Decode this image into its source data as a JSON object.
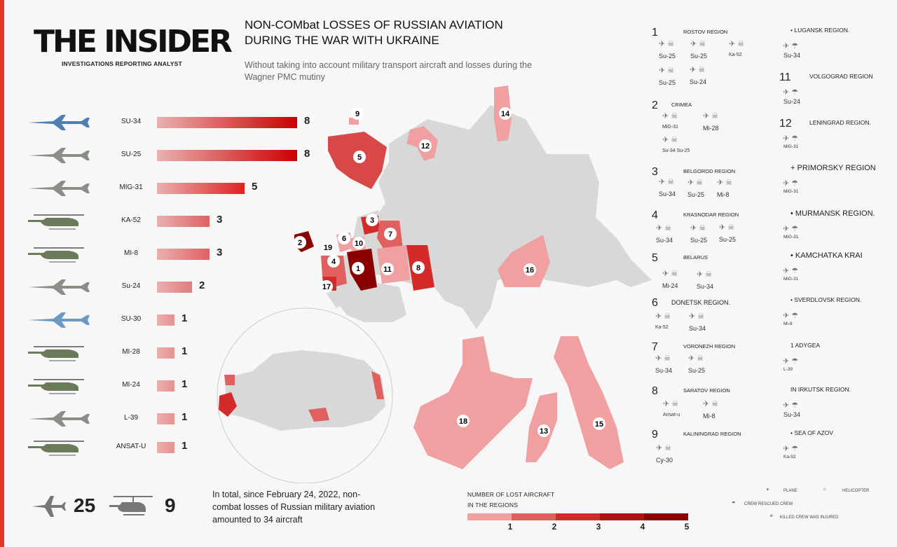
{
  "header": {
    "logo": "THE INSIDER",
    "tagline": "INVESTIGATIONS REPORTING ANALYST",
    "title": "NON-COMbat LOSSES OF RUSSIAN AVIATION DURING THE WAR WITH UKRAINE",
    "subtitle": "Without taking into account military transport aircraft and losses during the Wagner PMC mutiny"
  },
  "chart_data": {
    "type": "bar",
    "orientation": "horizontal",
    "categories": [
      "SU-34",
      "SU-25",
      "MIG-31",
      "KA-52",
      "MI-8",
      "Su-24",
      "SU-30",
      "MI-28",
      "MI-24",
      "L-39",
      "ANSAT-U"
    ],
    "values": [
      8,
      8,
      5,
      3,
      3,
      2,
      1,
      1,
      1,
      1,
      1
    ],
    "colors": [
      "#cc0000",
      "#cc0000",
      "#dd2222",
      "#e06060",
      "#e06060",
      "#e07b7b",
      "#e88f8f",
      "#e88f8f",
      "#e88f8f",
      "#e88f8f",
      "#e88f8f"
    ],
    "legend": {
      "title_line1": "NUMBER OF LOST AIRCRAFT",
      "title_line2": "IN THE REGIONS",
      "levels": [
        "1",
        "2",
        "3",
        "4",
        "5"
      ],
      "colors": [
        "#f0a0a0",
        "#e06060",
        "#d42a2a",
        "#b01010",
        "#8a0000"
      ]
    }
  },
  "totals": {
    "planes": "25",
    "helicopters": "9"
  },
  "note": "In total, since February 24, 2022, non-combat losses of Russian military aviation amounted to 34 aircraft",
  "map": {
    "labels": [
      "1",
      "2",
      "3",
      "4",
      "5",
      "6",
      "7",
      "8",
      "9",
      "10",
      "11",
      "12",
      "13",
      "14",
      "15",
      "16",
      "17",
      "18",
      "19"
    ]
  },
  "regions_left": [
    {
      "num": "1",
      "name": "ROSTOV REGION",
      "crafts": [
        "Su-25",
        "Su-25",
        "Ka-52",
        "Su-25",
        "Su-24"
      ]
    },
    {
      "num": "2",
      "name": "CRIMEA",
      "crafts": [
        "MiG-31",
        "Mi-28",
        "Su-34 Su-25"
      ]
    },
    {
      "num": "3",
      "name": "BELGOROD REGION",
      "crafts": [
        "Su-34",
        "Su-25",
        "Mi-8"
      ]
    },
    {
      "num": "4",
      "name": "KRASNODAR REGION",
      "crafts": [
        "Su-34",
        "Su-25",
        "Su-25"
      ]
    },
    {
      "num": "5",
      "name": "BELARUS",
      "crafts": [
        "Mi-24",
        "Su-34"
      ]
    },
    {
      "num": "6",
      "name": "DONETSK REGION.",
      "crafts": [
        "Ka-52",
        "Su-34"
      ]
    },
    {
      "num": "7",
      "name": "VORONEZH REGION",
      "crafts": [
        "Su-34",
        "Su-25"
      ]
    },
    {
      "num": "8",
      "name": "SARATOV REGION",
      "crafts": [
        "Ansat-u",
        "Mi-8"
      ]
    },
    {
      "num": "9",
      "name": "KALININGRAD REGION",
      "crafts": [
        "Cy-30"
      ]
    }
  ],
  "regions_right": [
    {
      "num": "",
      "name": "• LUGANSK REGION.",
      "crafts": [
        "Su-34"
      ]
    },
    {
      "num": "11",
      "name": "VOLGOGRAD REGION",
      "crafts": [
        "Su-24"
      ]
    },
    {
      "num": "12",
      "name": "LENINGRAD REGION.",
      "crafts": [
        "MiG-31"
      ]
    },
    {
      "num": "",
      "name": "+ PRIMORSKY REGION",
      "crafts": [
        "MiG-31"
      ]
    },
    {
      "num": "",
      "name": "• MURMANSK REGION.",
      "crafts": [
        "MiG-31"
      ]
    },
    {
      "num": "",
      "name": "• KAMCHATKA KRAI",
      "crafts": [
        "MiG-31"
      ]
    },
    {
      "num": "",
      "name": "• SVERDLOVSK REGION.",
      "crafts": [
        "Mi-8"
      ]
    },
    {
      "num": "",
      "name": "1 ADYGEA",
      "crafts": [
        "L-39"
      ]
    },
    {
      "num": "",
      "name": "IN IRKUTSK REGION.",
      "crafts": [
        "Su-34"
      ]
    },
    {
      "num": "",
      "name": "• SEA OF AZOV",
      "crafts": [
        "Ka-52"
      ]
    }
  ],
  "legend_icons": {
    "plane": "PLANE",
    "helicopter": "HELICOPTER",
    "crew_rescued": "CREW RESCUED CREW",
    "killed": "KILLED CREW WAS INJURED"
  },
  "icons": [
    "plane-icon",
    "helicopter-icon",
    "parachute-icon",
    "skull-icon",
    "injured-icon"
  ]
}
